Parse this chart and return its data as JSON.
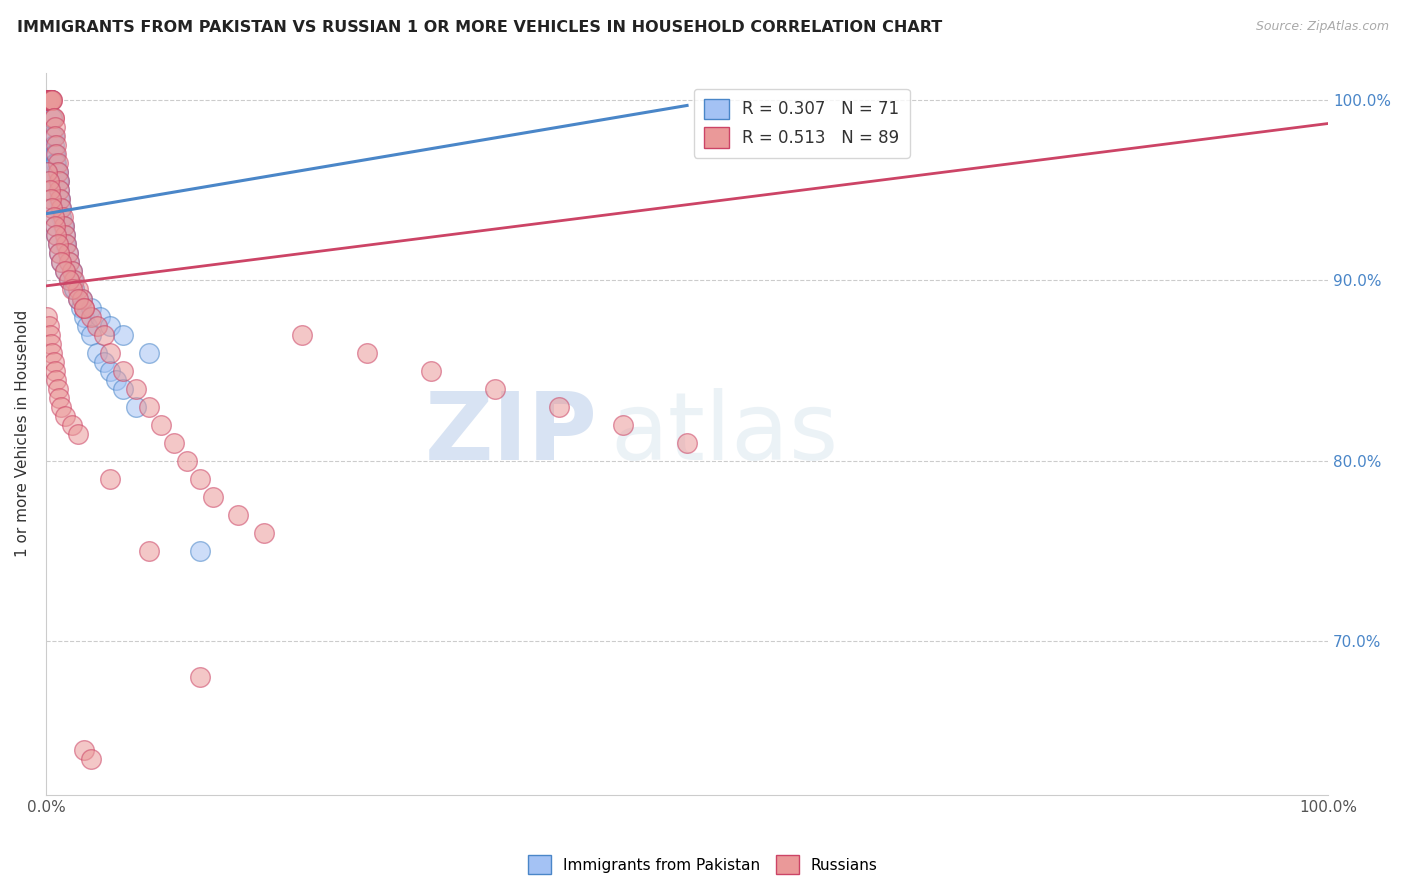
{
  "title": "IMMIGRANTS FROM PAKISTAN VS RUSSIAN 1 OR MORE VEHICLES IN HOUSEHOLD CORRELATION CHART",
  "source": "Source: ZipAtlas.com",
  "ylabel": "1 or more Vehicles in Household",
  "xlim": [
    0.0,
    1.0
  ],
  "ylim": [
    0.615,
    1.015
  ],
  "ytick_positions": [
    0.7,
    0.8,
    0.9,
    1.0
  ],
  "ytick_labels": [
    "70.0%",
    "80.0%",
    "90.0%",
    "100.0%"
  ],
  "legend_labels": [
    "Immigrants from Pakistan",
    "Russians"
  ],
  "R_pakistan": 0.307,
  "N_pakistan": 71,
  "R_russian": 0.513,
  "N_russian": 89,
  "blue_color": "#a4c2f4",
  "pink_color": "#ea9999",
  "blue_line_color": "#4a86c8",
  "pink_line_color": "#cc4466",
  "watermark_zip": "ZIP",
  "watermark_atlas": "atlas",
  "pakistan_x": [
    0.001,
    0.001,
    0.002,
    0.002,
    0.003,
    0.003,
    0.003,
    0.004,
    0.004,
    0.004,
    0.005,
    0.005,
    0.005,
    0.006,
    0.006,
    0.006,
    0.007,
    0.007,
    0.008,
    0.008,
    0.009,
    0.009,
    0.01,
    0.01,
    0.01,
    0.011,
    0.011,
    0.012,
    0.012,
    0.013,
    0.014,
    0.015,
    0.015,
    0.016,
    0.017,
    0.018,
    0.02,
    0.021,
    0.022,
    0.025,
    0.027,
    0.03,
    0.032,
    0.035,
    0.04,
    0.045,
    0.05,
    0.055,
    0.06,
    0.07,
    0.001,
    0.002,
    0.003,
    0.004,
    0.005,
    0.006,
    0.007,
    0.008,
    0.009,
    0.01,
    0.012,
    0.015,
    0.018,
    0.022,
    0.028,
    0.035,
    0.042,
    0.05,
    0.06,
    0.08,
    0.12
  ],
  "pakistan_y": [
    1.0,
    1.0,
    1.0,
    1.0,
    1.0,
    1.0,
    1.0,
    1.0,
    1.0,
    1.0,
    0.99,
    0.99,
    0.98,
    0.98,
    0.975,
    0.97,
    0.97,
    0.965,
    0.965,
    0.96,
    0.96,
    0.955,
    0.955,
    0.95,
    0.945,
    0.945,
    0.94,
    0.94,
    0.935,
    0.93,
    0.93,
    0.925,
    0.92,
    0.92,
    0.915,
    0.91,
    0.905,
    0.9,
    0.895,
    0.89,
    0.885,
    0.88,
    0.875,
    0.87,
    0.86,
    0.855,
    0.85,
    0.845,
    0.84,
    0.83,
    0.96,
    0.955,
    0.95,
    0.945,
    0.94,
    0.935,
    0.93,
    0.925,
    0.92,
    0.915,
    0.91,
    0.905,
    0.9,
    0.895,
    0.89,
    0.885,
    0.88,
    0.875,
    0.87,
    0.86,
    0.75
  ],
  "russia_x": [
    0.001,
    0.001,
    0.002,
    0.002,
    0.003,
    0.003,
    0.004,
    0.004,
    0.005,
    0.005,
    0.006,
    0.006,
    0.007,
    0.007,
    0.008,
    0.008,
    0.009,
    0.009,
    0.01,
    0.01,
    0.011,
    0.012,
    0.013,
    0.014,
    0.015,
    0.016,
    0.017,
    0.018,
    0.02,
    0.022,
    0.025,
    0.028,
    0.03,
    0.035,
    0.04,
    0.045,
    0.05,
    0.06,
    0.07,
    0.08,
    0.09,
    0.1,
    0.11,
    0.12,
    0.13,
    0.15,
    0.17,
    0.2,
    0.25,
    0.3,
    0.35,
    0.4,
    0.45,
    0.5,
    0.001,
    0.002,
    0.003,
    0.004,
    0.005,
    0.006,
    0.007,
    0.008,
    0.009,
    0.01,
    0.012,
    0.015,
    0.018,
    0.02,
    0.025,
    0.03,
    0.001,
    0.002,
    0.003,
    0.004,
    0.005,
    0.006,
    0.007,
    0.008,
    0.009,
    0.01,
    0.012,
    0.015,
    0.02,
    0.025,
    0.03,
    0.035,
    0.05,
    0.08,
    0.12
  ],
  "russia_y": [
    1.0,
    1.0,
    1.0,
    1.0,
    1.0,
    1.0,
    1.0,
    1.0,
    1.0,
    1.0,
    0.99,
    0.99,
    0.985,
    0.98,
    0.975,
    0.97,
    0.965,
    0.96,
    0.955,
    0.95,
    0.945,
    0.94,
    0.935,
    0.93,
    0.925,
    0.92,
    0.915,
    0.91,
    0.905,
    0.9,
    0.895,
    0.89,
    0.885,
    0.88,
    0.875,
    0.87,
    0.86,
    0.85,
    0.84,
    0.83,
    0.82,
    0.81,
    0.8,
    0.79,
    0.78,
    0.77,
    0.76,
    0.87,
    0.86,
    0.85,
    0.84,
    0.83,
    0.82,
    0.81,
    0.96,
    0.955,
    0.95,
    0.945,
    0.94,
    0.935,
    0.93,
    0.925,
    0.92,
    0.915,
    0.91,
    0.905,
    0.9,
    0.895,
    0.89,
    0.885,
    0.88,
    0.875,
    0.87,
    0.865,
    0.86,
    0.855,
    0.85,
    0.845,
    0.84,
    0.835,
    0.83,
    0.825,
    0.82,
    0.815,
    0.64,
    0.635,
    0.79,
    0.75,
    0.68
  ],
  "blue_trend": [
    0.937,
    0.997
  ],
  "pink_trend": [
    0.897,
    0.987
  ]
}
